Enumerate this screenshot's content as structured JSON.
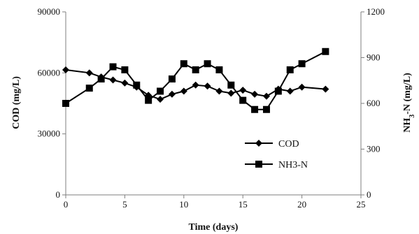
{
  "chart_data": {
    "type": "line",
    "title": "",
    "xlabel": "Time (days)",
    "ylabel_left": "COD (mg/L)",
    "ylabel_right_main": "NH",
    "ylabel_right_sub": "3",
    "ylabel_right_rest": "-N (mg/L)",
    "xlim": [
      0,
      25
    ],
    "ylim_left": [
      0,
      90000
    ],
    "ylim_right": [
      0,
      1200
    ],
    "xticks": [
      "0",
      "5",
      "10",
      "15",
      "20",
      "25"
    ],
    "xtick_values": [
      0,
      5,
      10,
      15,
      20,
      25
    ],
    "yticks_left": [
      "0",
      "30000",
      "60000",
      "90000"
    ],
    "ytick_left_values": [
      0,
      30000,
      60000,
      90000
    ],
    "yticks_right": [
      "0",
      "300",
      "600",
      "900",
      "1200"
    ],
    "ytick_right_values": [
      0,
      300,
      600,
      900,
      1200
    ],
    "grid": false,
    "legend_position": "center-right",
    "series": [
      {
        "name": "COD",
        "axis": "left",
        "marker": "diamond",
        "color": "#000000",
        "x": [
          0,
          2,
          3,
          4,
          5,
          6,
          7,
          8,
          9,
          10,
          11,
          12,
          13,
          14,
          15,
          16,
          17,
          18,
          19,
          20,
          22
        ],
        "y": [
          61500,
          60000,
          58000,
          56500,
          55000,
          53000,
          49000,
          47000,
          49500,
          51000,
          54000,
          53500,
          51000,
          50000,
          51500,
          49500,
          48500,
          52000,
          51000,
          53000,
          52000
        ]
      },
      {
        "name": "NH3-N",
        "axis": "right",
        "marker": "square",
        "color": "#000000",
        "x": [
          0,
          2,
          3,
          4,
          5,
          6,
          7,
          8,
          9,
          10,
          11,
          12,
          13,
          14,
          15,
          16,
          17,
          18,
          19,
          20,
          22
        ],
        "y": [
          600,
          700,
          760,
          840,
          820,
          720,
          620,
          680,
          760,
          860,
          820,
          860,
          820,
          720,
          620,
          560,
          560,
          680,
          820,
          860,
          940
        ]
      }
    ]
  }
}
